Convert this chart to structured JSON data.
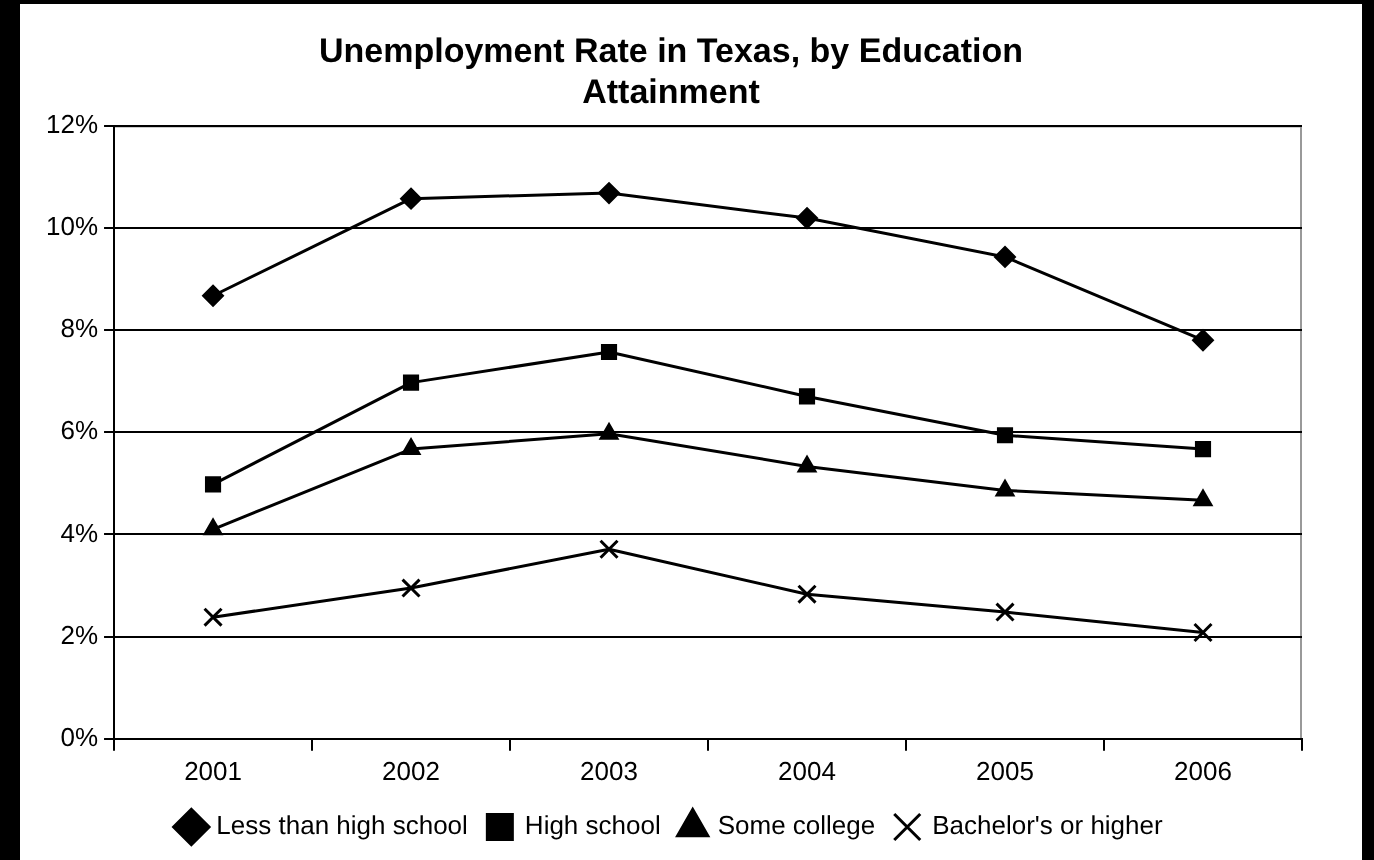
{
  "chart_data": {
    "type": "line",
    "title": "Unemployment Rate in Texas, by Education Attainment",
    "categories": [
      "2001",
      "2002",
      "2003",
      "2004",
      "2005",
      "2006"
    ],
    "series": [
      {
        "name": "Less than high school",
        "color": "#000000",
        "marker": "diamond",
        "values": [
          8.67,
          10.57,
          10.68,
          10.19,
          9.43,
          7.8
        ]
      },
      {
        "name": "High school",
        "color": "#000000",
        "marker": "square",
        "values": [
          4.98,
          6.97,
          7.57,
          6.7,
          5.94,
          5.67
        ]
      },
      {
        "name": "Some college",
        "color": "#000000",
        "marker": "triangle",
        "values": [
          4.1,
          5.67,
          5.97,
          5.33,
          4.86,
          4.67
        ]
      },
      {
        "name": "Bachelor's or higher",
        "color": "#000000",
        "marker": "cross",
        "values": [
          2.38,
          2.95,
          3.71,
          2.83,
          2.48,
          2.08
        ]
      }
    ],
    "ylim": [
      0,
      12
    ],
    "yticks": [
      {
        "value": 0,
        "label": "0%"
      },
      {
        "value": 2,
        "label": "2%"
      },
      {
        "value": 4,
        "label": "4%"
      },
      {
        "value": 6,
        "label": "6%"
      },
      {
        "value": 8,
        "label": "8%"
      },
      {
        "value": 10,
        "label": "10%"
      },
      {
        "value": 12,
        "label": "12%"
      }
    ],
    "grid": "y",
    "legend": "bottom",
    "line_style": "solid"
  }
}
